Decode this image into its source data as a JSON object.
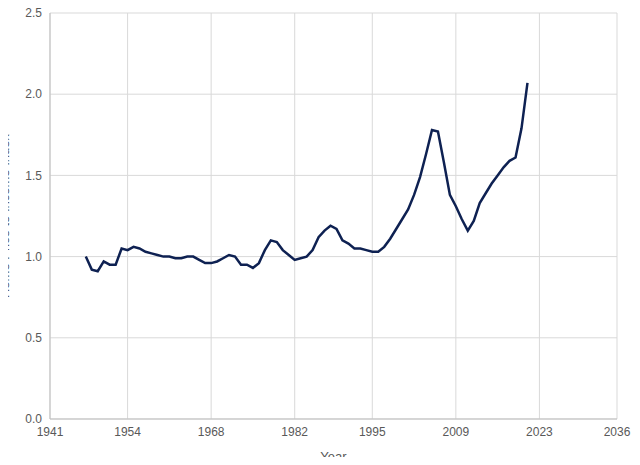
{
  "chart_data": {
    "type": "line",
    "x_label": "Year",
    "y_label": "Home Price to Income Index",
    "color": "#0e2152",
    "grid": true,
    "xlim": [
      1941,
      2036
    ],
    "xticks": [
      1941,
      1954,
      1968,
      1982,
      1995,
      2009,
      2023,
      2036
    ],
    "ylim": [
      0,
      2.5
    ],
    "yticks": [
      {
        "value": 0,
        "label": "0.0"
      },
      0.5,
      {
        "value": 1,
        "label": "1.0"
      },
      1.5,
      {
        "value": 2,
        "label": "2.0"
      },
      2.5
    ],
    "x": [
      1947,
      1948,
      1949,
      1950,
      1951,
      1952,
      1953,
      1954,
      1955,
      1956,
      1957,
      1958,
      1959,
      1960,
      1961,
      1962,
      1963,
      1964,
      1965,
      1966,
      1967,
      1968,
      1969,
      1970,
      1971,
      1972,
      1973,
      1974,
      1975,
      1976,
      1977,
      1978,
      1979,
      1980,
      1981,
      1982,
      1983,
      1984,
      1985,
      1986,
      1987,
      1988,
      1989,
      1990,
      1991,
      1992,
      1993,
      1994,
      1995,
      1996,
      1997,
      1998,
      1999,
      2000,
      2001,
      2002,
      2003,
      2004,
      2005,
      2006,
      2007,
      2008,
      2009,
      2010,
      2011,
      2012,
      2013,
      2014,
      2015,
      2016,
      2017,
      2018,
      2019,
      2020,
      2021
    ],
    "values": [
      1.0,
      0.92,
      0.91,
      0.97,
      0.95,
      0.95,
      1.05,
      1.04,
      1.06,
      1.05,
      1.03,
      1.02,
      1.01,
      1.0,
      1.0,
      0.99,
      0.99,
      1.0,
      1.0,
      0.98,
      0.96,
      0.96,
      0.97,
      0.99,
      1.01,
      1.0,
      0.95,
      0.95,
      0.93,
      0.96,
      1.04,
      1.1,
      1.09,
      1.04,
      1.01,
      0.98,
      0.99,
      1.0,
      1.04,
      1.12,
      1.16,
      1.19,
      1.17,
      1.1,
      1.08,
      1.05,
      1.05,
      1.04,
      1.03,
      1.03,
      1.06,
      1.11,
      1.17,
      1.23,
      1.29,
      1.38,
      1.49,
      1.63,
      1.78,
      1.77,
      1.58,
      1.38,
      1.31,
      1.23,
      1.16,
      1.22,
      1.33,
      1.39,
      1.45,
      1.5,
      1.55,
      1.59,
      1.61,
      1.79,
      2.07
    ]
  }
}
